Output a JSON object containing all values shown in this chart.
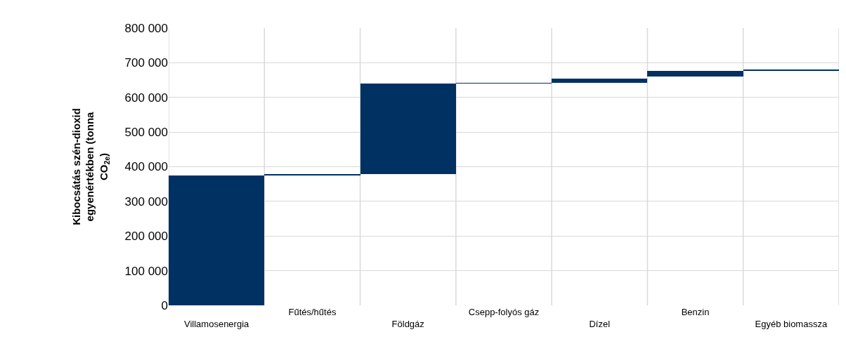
{
  "chart_data": {
    "type": "bar",
    "ylabel": "Kibocsátás szén-dioxid egyenértékben (tonna CO$_{2e}$)",
    "categories": [
      "Villamosenergia",
      "Fűtés/hűtés",
      "Földgáz",
      "Csepp-folyós gáz",
      "Dízel",
      "Benzin",
      "Egyéb biomassza"
    ],
    "values": [
      375000,
      3000,
      261000,
      2000,
      12000,
      16000,
      2000
    ],
    "base": [
      0,
      376000,
      379000,
      640000,
      643000,
      660000,
      678000
    ],
    "color": "#003163",
    "ylim": [
      0,
      800000
    ],
    "yticks": [
      0,
      {
        "value": 100000,
        "label": "100 000"
      },
      {
        "value": 200000,
        "label": "200 000"
      },
      {
        "value": 300000,
        "label": "300 000"
      },
      {
        "value": 400000,
        "label": "400 000"
      },
      {
        "value": 500000,
        "label": "500 000"
      },
      {
        "value": 600000,
        "label": "600 000"
      },
      {
        "value": 700000,
        "label": "700 000"
      },
      {
        "value": 800000,
        "label": "800 000"
      }
    ],
    "grid": true,
    "legend": false
  }
}
